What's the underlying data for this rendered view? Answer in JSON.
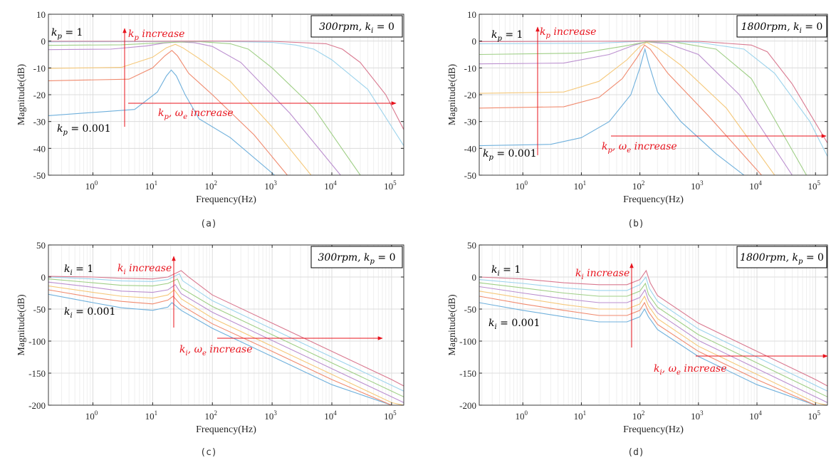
{
  "colors": {
    "annotation": "#e8141e",
    "series": [
      "#6fb0dc",
      "#f08a6e",
      "#f5c87a",
      "#bb8fcf",
      "#9fcf86",
      "#9cd3ec",
      "#d9788f"
    ],
    "grid": "#e6e6e6",
    "axis": "#262626"
  },
  "chart_data": [
    {
      "id": "a",
      "type": "line",
      "caption": "(a)",
      "xlabel": "Frequency(Hz)",
      "ylabel": "Magnitude(dB)",
      "xscale": "log",
      "xlim": [
        0.18,
        160000
      ],
      "ylim": [
        -50,
        10
      ],
      "yticks": [
        10,
        0,
        -10,
        -20,
        -30,
        -40,
        -50
      ],
      "yticklabels": [
        "10",
        "0",
        "-10",
        "-20",
        "-30",
        "-40",
        "-50"
      ],
      "xticks": [
        1,
        10,
        100,
        1000,
        10000,
        100000
      ],
      "xticklabels": [
        "10",
        "10",
        "10",
        "10",
        "10",
        "10"
      ],
      "xtickexponents": [
        "0",
        "1",
        "2",
        "3",
        "4",
        "5"
      ],
      "grid": true,
      "box_label": {
        "main": "300rpm, k",
        "sub": "i",
        "rest": " = 0"
      },
      "label_top": {
        "main": "k",
        "sub": "p",
        "rest": " = 1"
      },
      "label_bottom": {
        "main": "k",
        "sub": "p",
        "rest": " = 0.001"
      },
      "arrow_v_label": {
        "main": "k",
        "sub": "p",
        "rest": " increase"
      },
      "arrow_h_label": {
        "main": "k",
        "sub": "p",
        "mid": ", ω",
        "sub2": "e",
        "rest": " increase"
      },
      "series": [
        {
          "x": [
            0.18,
            5,
            12,
            17,
            20.5,
            25,
            35,
            60,
            200,
            1100
          ],
          "y": [
            -27.8,
            -25.5,
            -19,
            -13,
            -10.8,
            -13,
            -20,
            -29,
            -36,
            -50
          ]
        },
        {
          "x": [
            0.18,
            4,
            10,
            16,
            21,
            26,
            40,
            100,
            500,
            1800
          ],
          "y": [
            -14.8,
            -14.2,
            -10,
            -5.5,
            -3.5,
            -5.5,
            -12,
            -20,
            -35,
            -50
          ]
        },
        {
          "x": [
            0.18,
            3,
            10,
            17,
            24,
            32,
            60,
            200,
            1000,
            4500
          ],
          "y": [
            -10.2,
            -9.8,
            -6,
            -2.5,
            -1.2,
            -2.5,
            -6.5,
            -15,
            -32,
            -50
          ]
        },
        {
          "x": [
            0.18,
            2,
            8,
            15,
            26,
            50,
            100,
            300,
            2000,
            14000
          ],
          "y": [
            -3.2,
            -3,
            -1.8,
            -0.8,
            -0.3,
            -0.6,
            -2,
            -8,
            -27,
            -50
          ]
        },
        {
          "x": [
            0.18,
            3,
            20,
            60,
            200,
            400,
            1000,
            5000,
            30000
          ],
          "y": [
            -1.6,
            -1.4,
            -0.5,
            -0.2,
            -1,
            -3,
            -10,
            -25,
            -50
          ]
        },
        {
          "x": [
            0.18,
            10,
            100,
            1000,
            2500,
            5000,
            10000,
            40000,
            160000
          ],
          "y": [
            -0.3,
            -0.2,
            -0.1,
            -0.5,
            -1.5,
            -3,
            -7,
            -18,
            -39
          ]
        },
        {
          "x": [
            0.18,
            10,
            100,
            1000,
            8000,
            15000,
            30000,
            80000,
            160000
          ],
          "y": [
            -0.1,
            -0.1,
            0,
            -0.1,
            -1,
            -3,
            -8,
            -20,
            -33
          ]
        }
      ]
    },
    {
      "id": "b",
      "type": "line",
      "caption": "(b)",
      "xlabel": "Frequency(Hz)",
      "ylabel": "Magnitude(dB)",
      "xscale": "log",
      "xlim": [
        0.18,
        160000
      ],
      "ylim": [
        -50,
        10
      ],
      "yticks": [
        10,
        0,
        -10,
        -20,
        -30,
        -40,
        -50
      ],
      "yticklabels": [
        "10",
        "0",
        "-10",
        "-20",
        "-30",
        "-40",
        "-50"
      ],
      "xticks": [
        1,
        10,
        100,
        1000,
        10000,
        100000
      ],
      "xticklabels": [
        "10",
        "10",
        "10",
        "10",
        "10",
        "10"
      ],
      "xtickexponents": [
        "0",
        "1",
        "2",
        "3",
        "4",
        "5"
      ],
      "grid": true,
      "box_label": {
        "main": "1800rpm, k",
        "sub": "i",
        "rest": " = 0"
      },
      "label_top": {
        "main": "k",
        "sub": "p",
        "rest": " = 1"
      },
      "label_bottom": {
        "main": "k",
        "sub": "p",
        "rest": " = 0.001"
      },
      "arrow_v_label": {
        "main": "k",
        "sub": "p",
        "rest": " increase"
      },
      "arrow_h_label": {
        "main": "k",
        "sub": "p",
        "mid": ", ω",
        "sub2": "e",
        "rest": " increase"
      },
      "series": [
        {
          "x": [
            0.18,
            3,
            10,
            30,
            70,
            100,
            122,
            140,
            200,
            500,
            2000,
            6000
          ],
          "y": [
            -39,
            -38.5,
            -36,
            -30,
            -20,
            -10,
            -3,
            -8,
            -19,
            -30,
            -42,
            -50
          ]
        },
        {
          "x": [
            0.18,
            5,
            20,
            50,
            90,
            120,
            150,
            300,
            1500,
            12000
          ],
          "y": [
            -25,
            -24.5,
            -21,
            -14,
            -6,
            -1.5,
            -3,
            -12,
            -28,
            -50
          ]
        },
        {
          "x": [
            0.18,
            5,
            20,
            60,
            100,
            130,
            200,
            500,
            3000,
            20000
          ],
          "y": [
            -19.5,
            -19,
            -15,
            -7,
            -2,
            -0.5,
            -2.5,
            -9,
            -25,
            -50
          ]
        },
        {
          "x": [
            0.18,
            5,
            30,
            80,
            130,
            300,
            1000,
            5000,
            40000
          ],
          "y": [
            -8.5,
            -8.2,
            -5,
            -1.5,
            -0.3,
            -1,
            -5,
            -20,
            -50
          ]
        },
        {
          "x": [
            0.18,
            10,
            50,
            130,
            400,
            2000,
            8000,
            70000
          ],
          "y": [
            -5,
            -4.5,
            -2,
            -0.3,
            -0.4,
            -3,
            -14,
            -50
          ]
        },
        {
          "x": [
            0.18,
            20,
            130,
            1000,
            6000,
            20000,
            80000,
            160000
          ],
          "y": [
            -1,
            -0.8,
            0,
            -0.5,
            -3,
            -12,
            -30,
            -43
          ]
        },
        {
          "x": [
            0.18,
            20,
            130,
            1000,
            8000,
            15000,
            40000,
            160000
          ],
          "y": [
            -0.2,
            -0.1,
            0,
            -0.1,
            -1.5,
            -4,
            -16,
            -38
          ]
        }
      ]
    },
    {
      "id": "c",
      "type": "line",
      "caption": "(c)",
      "xlabel": "Frequency(Hz)",
      "ylabel": "Magnitude(dB)",
      "xscale": "log",
      "xlim": [
        0.18,
        160000
      ],
      "ylim": [
        -200,
        50
      ],
      "yticks": [
        50,
        0,
        -50,
        -100,
        -150,
        -200
      ],
      "yticklabels": [
        "50",
        "0",
        "-50",
        "-100",
        "-150",
        "-200"
      ],
      "xticks": [
        1,
        10,
        100,
        1000,
        10000,
        100000
      ],
      "xticklabels": [
        "10",
        "10",
        "10",
        "10",
        "10",
        "10"
      ],
      "xtickexponents": [
        "0",
        "1",
        "2",
        "3",
        "4",
        "5"
      ],
      "grid": true,
      "box_label": {
        "main": "300rpm, k",
        "sub": "p",
        "rest": " = 0"
      },
      "label_top": {
        "main": "k",
        "sub": "i",
        "rest": " = 1"
      },
      "label_bottom": {
        "main": "k",
        "sub": "i",
        "rest": " = 0.001"
      },
      "arrow_v_label": {
        "main": "k",
        "sub": "i",
        "rest": " increase"
      },
      "arrow_h_label": {
        "main": "k",
        "sub": "i",
        "mid": ", ω",
        "sub2": "e",
        "rest": " increase"
      },
      "series": [
        {
          "x": [
            0.18,
            1,
            3,
            10,
            18,
            21,
            30,
            100,
            1000,
            10000,
            100000
          ],
          "y": [
            -27,
            -40,
            -48,
            -52,
            -47,
            -40,
            -52,
            -80,
            -124,
            -168,
            -200
          ]
        },
        {
          "x": [
            0.18,
            1,
            3,
            10,
            18,
            22,
            30,
            100,
            1000,
            10000,
            100000,
            160000
          ],
          "y": [
            -20,
            -32,
            -38,
            -42,
            -36,
            -30,
            -44,
            -73,
            -116,
            -160,
            -200,
            -200
          ]
        },
        {
          "x": [
            0.18,
            1,
            3,
            10,
            18,
            23,
            30,
            100,
            1000,
            10000,
            100000,
            160000
          ],
          "y": [
            -14,
            -24,
            -30,
            -33,
            -28,
            -20,
            -34,
            -64,
            -108,
            -152,
            -196,
            -200
          ]
        },
        {
          "x": [
            0.18,
            1,
            3,
            10,
            18,
            24,
            30,
            100,
            1000,
            10000,
            100000,
            160000
          ],
          "y": [
            -8,
            -16,
            -22,
            -24,
            -20,
            -12,
            -26,
            -55,
            -99,
            -143,
            -187,
            -196
          ]
        },
        {
          "x": [
            0.18,
            1,
            3,
            10,
            18,
            26,
            30,
            100,
            1000,
            10000,
            100000,
            160000
          ],
          "y": [
            -3,
            -9,
            -13,
            -14,
            -10,
            -3,
            -17,
            -46,
            -90,
            -134,
            -178,
            -187
          ]
        },
        {
          "x": [
            0.18,
            1,
            3,
            10,
            18,
            28,
            32,
            100,
            1000,
            10000,
            100000,
            160000
          ],
          "y": [
            0,
            -3,
            -6,
            -7,
            -4,
            5,
            -6,
            -37,
            -81,
            -125,
            -169,
            -178
          ]
        },
        {
          "x": [
            0.18,
            1,
            3,
            10,
            18,
            30,
            40,
            100,
            1000,
            10000,
            100000,
            160000
          ],
          "y": [
            1,
            0,
            -2,
            -3,
            0,
            10,
            0,
            -28,
            -72,
            -116,
            -160,
            -170
          ]
        }
      ]
    },
    {
      "id": "d",
      "type": "line",
      "caption": "(d)",
      "xlabel": "Frequency(Hz)",
      "ylabel": "Magnitude(dB)",
      "xscale": "log",
      "xlim": [
        0.18,
        160000
      ],
      "ylim": [
        -200,
        50
      ],
      "yticks": [
        50,
        0,
        -50,
        -100,
        -150,
        -200
      ],
      "yticklabels": [
        "50",
        "0",
        "-50",
        "-100",
        "-150",
        "-200"
      ],
      "xticks": [
        1,
        10,
        100,
        1000,
        10000,
        100000
      ],
      "xticklabels": [
        "10",
        "10",
        "10",
        "10",
        "10",
        "10"
      ],
      "xtickexponents": [
        "0",
        "1",
        "2",
        "3",
        "4",
        "5"
      ],
      "grid": true,
      "box_label": {
        "main": "1800rpm, k",
        "sub": "p",
        "rest": " = 0"
      },
      "label_top": {
        "main": "k",
        "sub": "i",
        "rest": " = 1"
      },
      "label_bottom": {
        "main": "k",
        "sub": "i",
        "rest": " = 0.001"
      },
      "arrow_v_label": {
        "main": "k",
        "sub": "i",
        "rest": " increase"
      },
      "arrow_h_label": {
        "main": "k",
        "sub": "i",
        "mid": ", ω",
        "sub2": "e",
        "rest": " increase"
      },
      "series": [
        {
          "x": [
            0.18,
            1,
            5,
            20,
            60,
            100,
            120,
            140,
            200,
            1000,
            10000,
            100000
          ],
          "y": [
            -40,
            -52,
            -62,
            -70,
            -70,
            -62,
            -50,
            -62,
            -82,
            -124,
            -168,
            -200
          ]
        },
        {
          "x": [
            0.18,
            1,
            5,
            20,
            60,
            100,
            120,
            140,
            200,
            1000,
            10000,
            100000,
            160000
          ],
          "y": [
            -30,
            -42,
            -52,
            -60,
            -60,
            -52,
            -40,
            -54,
            -74,
            -116,
            -160,
            -200,
            -200
          ]
        },
        {
          "x": [
            0.18,
            1,
            5,
            20,
            60,
            100,
            120,
            140,
            200,
            1000,
            10000,
            100000,
            160000
          ],
          "y": [
            -22,
            -33,
            -43,
            -50,
            -50,
            -42,
            -30,
            -45,
            -65,
            -108,
            -152,
            -196,
            -200
          ]
        },
        {
          "x": [
            0.18,
            1,
            5,
            20,
            60,
            100,
            122,
            140,
            200,
            1000,
            10000,
            100000,
            160000
          ],
          "y": [
            -15,
            -25,
            -34,
            -40,
            -40,
            -32,
            -20,
            -36,
            -56,
            -99,
            -143,
            -187,
            -196
          ]
        },
        {
          "x": [
            0.18,
            1,
            5,
            20,
            60,
            100,
            124,
            140,
            200,
            1000,
            10000,
            100000,
            160000
          ],
          "y": [
            -9,
            -17,
            -25,
            -30,
            -30,
            -22,
            -10,
            -27,
            -47,
            -90,
            -134,
            -178,
            -187
          ]
        },
        {
          "x": [
            0.18,
            1,
            5,
            20,
            60,
            100,
            126,
            145,
            200,
            1000,
            10000,
            100000,
            160000
          ],
          "y": [
            -4,
            -10,
            -17,
            -21,
            -21,
            -12,
            0,
            -18,
            -38,
            -81,
            -125,
            -169,
            -178
          ]
        },
        {
          "x": [
            0.18,
            1,
            5,
            20,
            60,
            100,
            128,
            150,
            200,
            1000,
            10000,
            100000,
            160000
          ],
          "y": [
            0,
            -3,
            -9,
            -12,
            -12,
            -4,
            10,
            -9,
            -29,
            -72,
            -116,
            -160,
            -170
          ]
        }
      ]
    }
  ]
}
